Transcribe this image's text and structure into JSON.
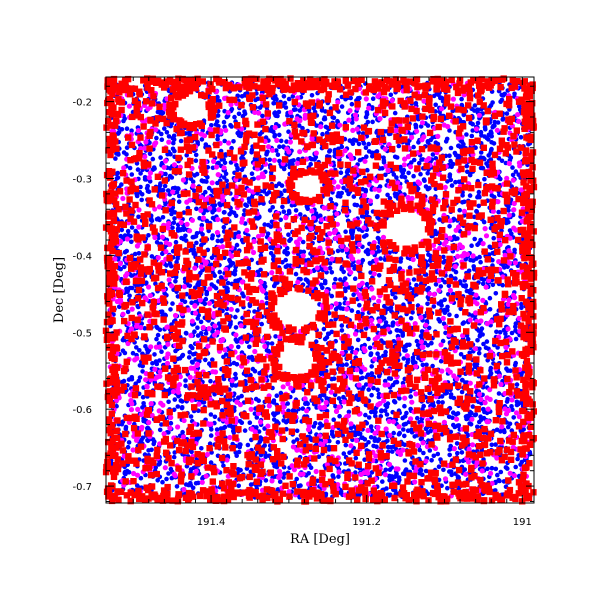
{
  "chart_data": {
    "type": "scatter",
    "title": "",
    "xlabel": "RA [Deg]",
    "ylabel": "Dec [Deg]",
    "xlim": [
      191.535,
      190.985
    ],
    "ylim": [
      -0.722,
      -0.168
    ],
    "x_axis_reversed": true,
    "grid": false,
    "legend": "none",
    "x_ticks": [
      {
        "value": 191.4,
        "label": "191.4"
      },
      {
        "value": 191.2,
        "label": "191.2"
      },
      {
        "value": 191.0,
        "label": "191"
      }
    ],
    "y_ticks": [
      {
        "value": -0.2,
        "label": "-0.2"
      },
      {
        "value": -0.3,
        "label": "-0.3"
      },
      {
        "value": -0.4,
        "label": "-0.4"
      },
      {
        "value": -0.5,
        "label": "-0.5"
      },
      {
        "value": -0.6,
        "label": "-0.6"
      },
      {
        "value": -0.7,
        "label": "-0.7"
      }
    ],
    "series": [
      {
        "color": "#0000ff",
        "marker": "dot",
        "points_approx": 5000,
        "x_range": [
          191.53,
          190.99
        ],
        "y_range": [
          -0.715,
          -0.175
        ],
        "distribution": "uniform, densest overall"
      },
      {
        "color": "#ff00ff",
        "marker": "dot",
        "points_approx": 1400,
        "x_range": [
          191.53,
          190.99
        ],
        "y_range": [
          -0.715,
          -0.175
        ],
        "distribution": "uniform"
      },
      {
        "color": "#ff0000",
        "marker": "square",
        "points_approx": 2600,
        "x_range": [
          191.535,
          190.985
        ],
        "y_range": [
          -0.72,
          -0.17
        ],
        "distribution": "uniform with concentration along field edges and rings around masked regions"
      }
    ],
    "masked_regions": [
      {
        "shape": "ellipse",
        "center": [
          191.29,
          -0.47
        ],
        "radii": [
          0.03,
          0.025
        ],
        "note": "elongated diagonal hole"
      },
      {
        "shape": "ellipse",
        "center": [
          191.15,
          -0.365
        ],
        "radii": [
          0.028,
          0.025
        ],
        "note": "red ring with white center"
      },
      {
        "shape": "ellipse",
        "center": [
          191.29,
          -0.535
        ],
        "radii": [
          0.025,
          0.022
        ],
        "note": "red ring"
      },
      {
        "shape": "ellipse",
        "center": [
          191.425,
          -0.21
        ],
        "radii": [
          0.022,
          0.02
        ],
        "note": "red ring"
      },
      {
        "shape": "ellipse",
        "center": [
          191.275,
          -0.31
        ],
        "radii": [
          0.02,
          0.018
        ],
        "note": "red ring"
      }
    ]
  }
}
